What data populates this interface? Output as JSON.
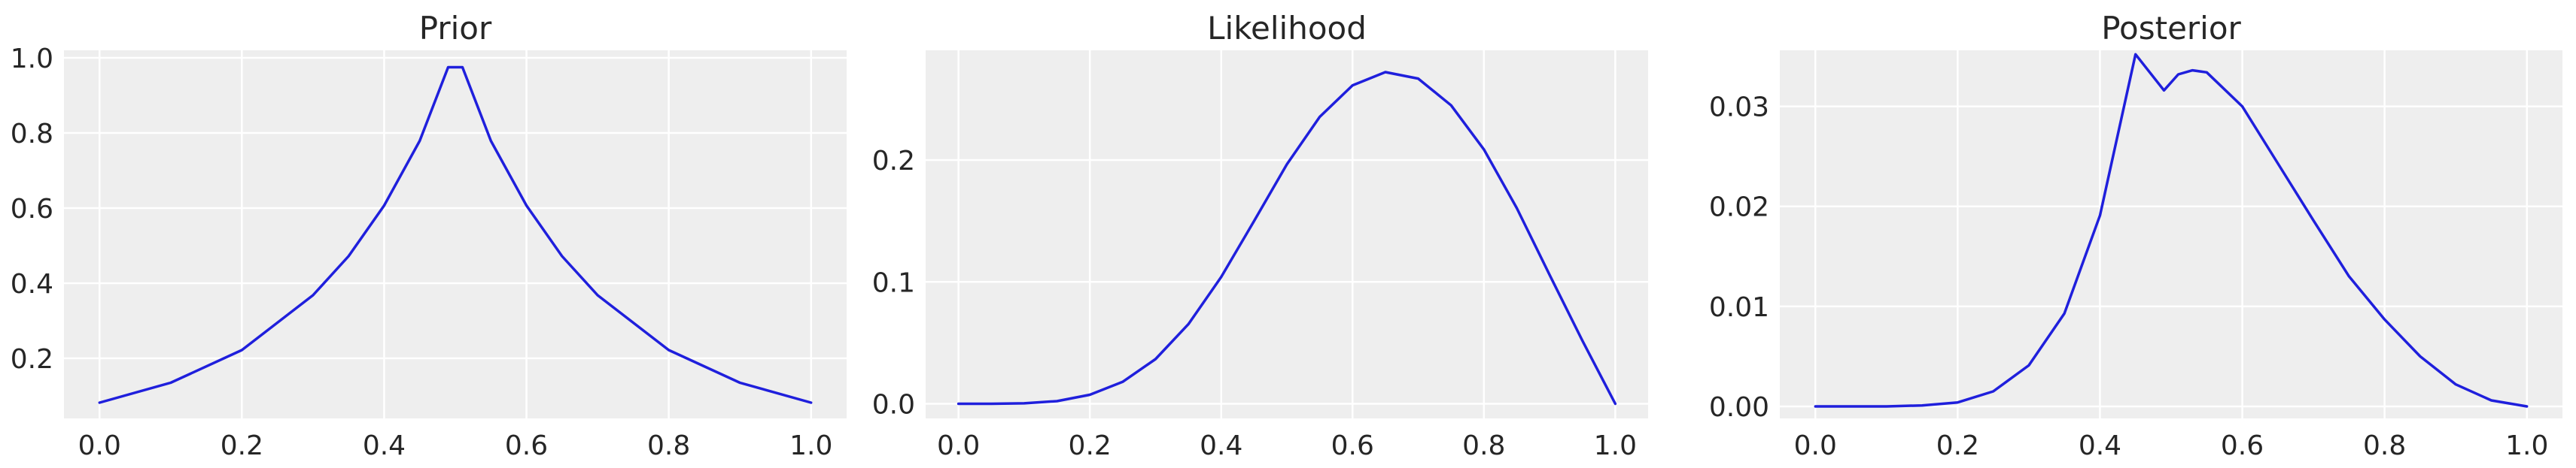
{
  "colors": {
    "line": "#1f1fdc",
    "axes_bg": "#eeeeee",
    "grid": "#ffffff",
    "text": "#262626"
  },
  "chart_data": [
    {
      "type": "line",
      "title": "Prior",
      "xlabel": "",
      "ylabel": "",
      "grid": true,
      "xlim": [
        -0.05,
        1.05
      ],
      "ylim": [
        0.04,
        1.02
      ],
      "xticks": [
        0.0,
        0.2,
        0.4,
        0.6,
        0.8,
        1.0
      ],
      "xtick_labels": [
        "0.0",
        "0.2",
        "0.4",
        "0.6",
        "0.8",
        "1.0"
      ],
      "yticks": [
        0.2,
        0.4,
        0.6,
        0.8,
        1.0
      ],
      "ytick_labels": [
        "0.2",
        "0.4",
        "0.6",
        "0.8",
        "1.0"
      ],
      "series": [
        {
          "x": [
            0.0,
            0.1,
            0.2,
            0.3,
            0.35,
            0.4,
            0.45,
            0.49,
            0.51,
            0.55,
            0.6,
            0.65,
            0.7,
            0.8,
            0.9,
            1.0
          ],
          "y": [
            0.082,
            0.135,
            0.222,
            0.368,
            0.472,
            0.607,
            0.779,
            0.975,
            0.975,
            0.779,
            0.607,
            0.472,
            0.368,
            0.222,
            0.135,
            0.082
          ]
        }
      ]
    },
    {
      "type": "line",
      "title": "Likelihood",
      "xlabel": "",
      "ylabel": "",
      "grid": true,
      "xlim": [
        -0.05,
        1.05
      ],
      "ylim": [
        -0.012,
        0.29
      ],
      "xticks": [
        0.0,
        0.2,
        0.4,
        0.6,
        0.8,
        1.0
      ],
      "xtick_labels": [
        "0.0",
        "0.2",
        "0.4",
        "0.6",
        "0.8",
        "1.0"
      ],
      "yticks": [
        0.0,
        0.1,
        0.2
      ],
      "ytick_labels": [
        "0.0",
        "0.1",
        "0.2"
      ],
      "series": [
        {
          "x": [
            0.0,
            0.05,
            0.1,
            0.15,
            0.2,
            0.25,
            0.3,
            0.35,
            0.4,
            0.45,
            0.5,
            0.55,
            0.6,
            0.65,
            0.7,
            0.75,
            0.8,
            0.85,
            0.9,
            0.95,
            1.0
          ],
          "y": [
            0.0,
            3e-05,
            0.0004,
            0.0022,
            0.0074,
            0.018,
            0.0367,
            0.0653,
            0.104,
            0.1499,
            0.1965,
            0.2354,
            0.2613,
            0.2721,
            0.2668,
            0.2449,
            0.2087,
            0.1606,
            0.1058,
            0.0518,
            0.0
          ]
        }
      ]
    },
    {
      "type": "line",
      "title": "Posterior",
      "xlabel": "",
      "ylabel": "",
      "grid": true,
      "xlim": [
        -0.05,
        1.05
      ],
      "ylim": [
        -0.0012,
        0.0356
      ],
      "xticks": [
        0.0,
        0.2,
        0.4,
        0.6,
        0.8,
        1.0
      ],
      "xtick_labels": [
        "0.0",
        "0.2",
        "0.4",
        "0.6",
        "0.8",
        "1.0"
      ],
      "yticks": [
        0.0,
        0.01,
        0.02,
        0.03
      ],
      "ytick_labels": [
        "0.00",
        "0.01",
        "0.02",
        "0.03"
      ],
      "series": [
        {
          "x": [
            0.0,
            0.05,
            0.1,
            0.15,
            0.2,
            0.25,
            0.3,
            0.35,
            0.4,
            0.45,
            0.49,
            0.51,
            0.53,
            0.55,
            0.6,
            0.65,
            0.7,
            0.75,
            0.8,
            0.85,
            0.9,
            0.95,
            1.0
          ],
          "y": [
            0.0,
            0.0,
            0.0,
            0.0001,
            0.0004,
            0.0015,
            0.0041,
            0.0093,
            0.0191,
            0.0352,
            0.0316,
            0.0332,
            0.0336,
            0.0334,
            0.03,
            0.0243,
            0.0186,
            0.013,
            0.0087,
            0.005,
            0.0022,
            0.0006,
            0.0
          ]
        }
      ]
    }
  ]
}
